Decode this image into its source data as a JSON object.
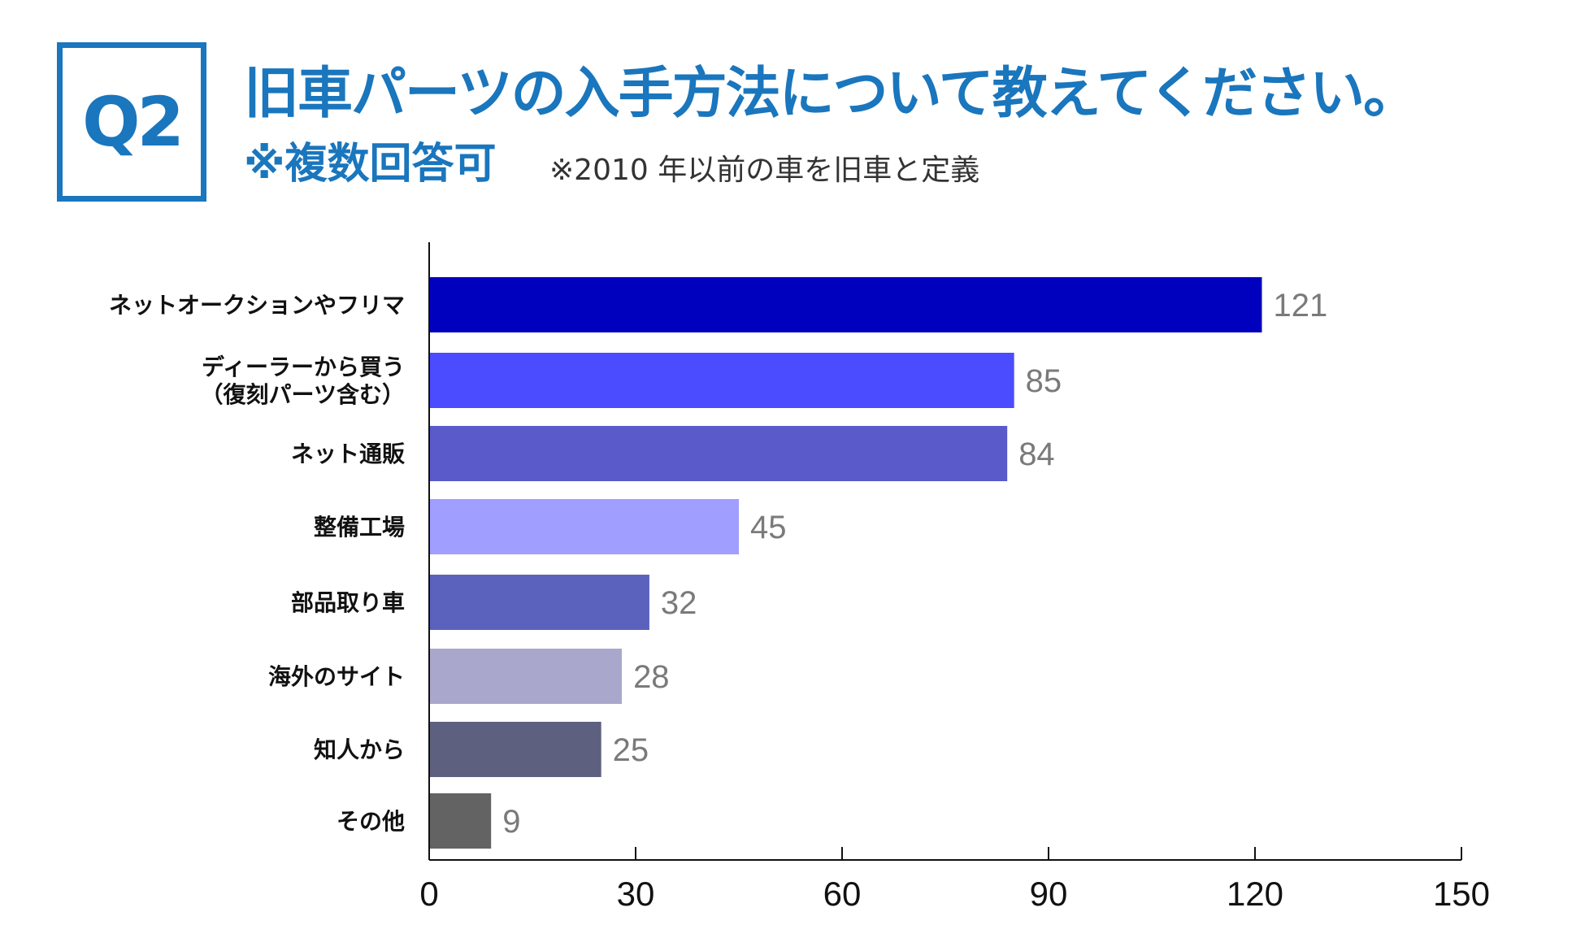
{
  "header": {
    "question_badge": "Q2",
    "title": "旧車パーツの入手方法について教えてください。",
    "subtitle": "※複数回答可",
    "note": "※2010 年以前の車を旧車と定義",
    "accent_color": "#1a76bd"
  },
  "chart_data": {
    "type": "bar",
    "orientation": "horizontal",
    "title": "旧車パーツの入手方法について教えてください。",
    "xlabel": "",
    "ylabel": "",
    "xlim": [
      0,
      150
    ],
    "xticks": [
      0,
      30,
      60,
      90,
      120,
      150
    ],
    "grid": false,
    "categories": [
      [
        "ネットオークションやフリマ"
      ],
      [
        "ディーラーから買う",
        "（復刻パーツ含む）"
      ],
      [
        "ネット通販"
      ],
      [
        "整備工場"
      ],
      [
        "部品取り車"
      ],
      [
        "海外のサイト"
      ],
      [
        "知人から"
      ],
      [
        "その他"
      ]
    ],
    "values": [
      121,
      85,
      84,
      45,
      32,
      28,
      25,
      9
    ],
    "colors": [
      "#0000bf",
      "#4b4bff",
      "#5a5acb",
      "#a09eff",
      "#5b62bd",
      "#a9a8cc",
      "#5e607f",
      "#636363"
    ]
  }
}
